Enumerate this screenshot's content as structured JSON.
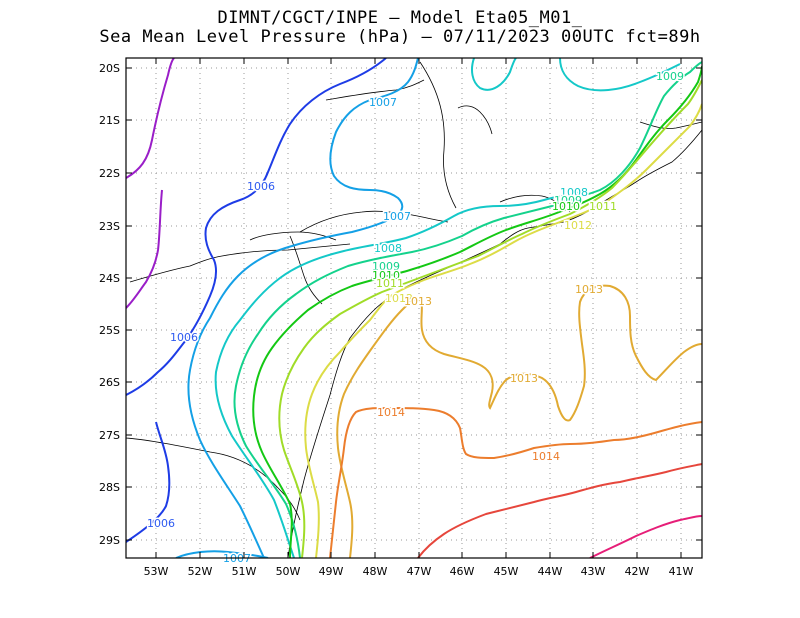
{
  "title_line1": "DIMNT/CGCT/INPE —  Model Eta05_M01_",
  "title_line2": "Sea Mean Level Pressure (hPa) — 07/11/2023 00UTC fct=89h",
  "lat_ticks": [
    "20S",
    "21S",
    "22S",
    "23S",
    "24S",
    "25S",
    "26S",
    "27S",
    "28S",
    "29S"
  ],
  "lon_ticks": [
    "53W",
    "52W",
    "51W",
    "50W",
    "49W",
    "48W",
    "47W",
    "46W",
    "45W",
    "44W",
    "43W",
    "42W",
    "41W"
  ],
  "colors": {
    "c1004": "#9a1ec8",
    "c1005": "#1e3ce6",
    "c1006": "#2d5af0",
    "c1007": "#14a0e6",
    "c1008": "#14c8c8",
    "c1009": "#14d28c",
    "c1010": "#14c814",
    "c1011": "#a0dc28",
    "c1012": "#dcdc46",
    "c1013": "#e1aa32",
    "c1014": "#ec7d2d",
    "c1015": "#e6463c",
    "c1016": "#e61e78"
  },
  "contour_labels": [
    {
      "text": "1006",
      "color": "c1006"
    },
    {
      "text": "1006",
      "color": "c1006"
    },
    {
      "text": "1006",
      "color": "c1006"
    },
    {
      "text": "1007",
      "color": "c1007"
    },
    {
      "text": "1007",
      "color": "c1007"
    },
    {
      "text": "1007",
      "color": "c1007"
    },
    {
      "text": "1008",
      "color": "c1008"
    },
    {
      "text": "1008",
      "color": "c1008"
    },
    {
      "text": "1009",
      "color": "c1009"
    },
    {
      "text": "1009",
      "color": "c1009"
    },
    {
      "text": "1009",
      "color": "c1009"
    },
    {
      "text": "1010",
      "color": "c1010"
    },
    {
      "text": "1010",
      "color": "c1010"
    },
    {
      "text": "1011",
      "color": "c1011"
    },
    {
      "text": "1011",
      "color": "c1011"
    },
    {
      "text": "1012",
      "color": "c1012"
    },
    {
      "text": "1012",
      "color": "c1012"
    },
    {
      "text": "1013",
      "color": "c1013"
    },
    {
      "text": "1013",
      "color": "c1013"
    },
    {
      "text": "1013",
      "color": "c1013"
    },
    {
      "text": "1014",
      "color": "c1014"
    },
    {
      "text": "1014",
      "color": "c1014"
    }
  ]
}
